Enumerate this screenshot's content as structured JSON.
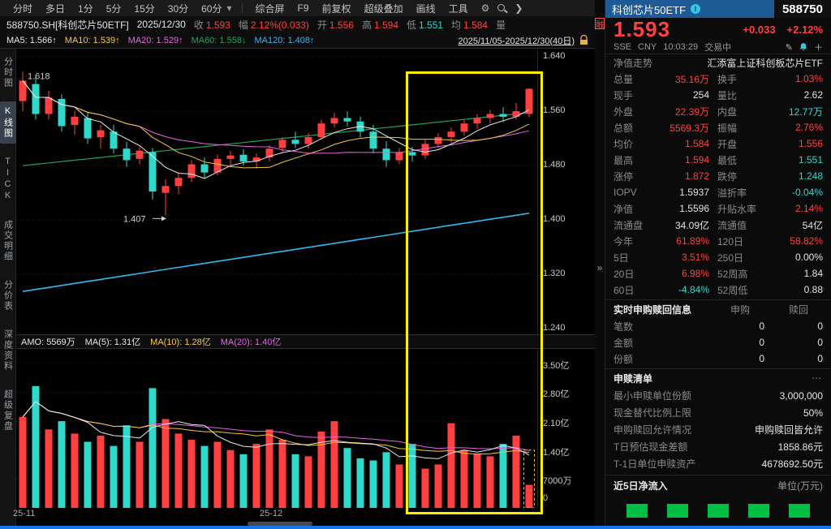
{
  "glyphs": {
    "caret": "▾",
    "chevron": "❯",
    "gear": "⚙",
    "more": "⋯",
    "collapse": "»",
    "info": "i",
    "edit": "✎",
    "plus": "＋"
  },
  "toolbar": {
    "period_tabs": [
      "分时",
      "多日",
      "1分",
      "5分",
      "15分",
      "30分",
      "60分"
    ],
    "tools": [
      "综合屏",
      "F9",
      "前复权",
      "超级叠加",
      "画线",
      "工具"
    ]
  },
  "info_bar": {
    "symbol": "588750.SH[科创芯片50ETF]",
    "date": "2025/12/30",
    "fields": [
      {
        "label": "收",
        "value": "1.593",
        "color": "up"
      },
      {
        "label": "幅",
        "value": "2.12%(0.033)",
        "color": "up"
      },
      {
        "label": "开",
        "value": "1.556",
        "color": "up"
      },
      {
        "label": "高",
        "value": "1.594",
        "color": "up"
      },
      {
        "label": "低",
        "value": "1.551",
        "color": "down"
      },
      {
        "label": "均",
        "value": "1.584",
        "color": "up"
      },
      {
        "label": "量",
        "value": "",
        "color": "neutral"
      }
    ]
  },
  "ma_bar": {
    "items": [
      {
        "label": "MA5:",
        "value": "1.566",
        "arrow": "↑",
        "color": "ma5"
      },
      {
        "label": "MA10:",
        "value": "1.539",
        "arrow": "↑",
        "color": "ma10"
      },
      {
        "label": "MA20:",
        "value": "1.529",
        "arrow": "↑",
        "color": "ma20"
      },
      {
        "label": "MA60:",
        "value": "1.558",
        "arrow": "↓",
        "color": "ma60"
      },
      {
        "label": "MA120:",
        "value": "1.408",
        "arrow": "↑",
        "color": "ma120"
      }
    ],
    "range": "2025/11/05-2025/12/30(40日)"
  },
  "sidebar": {
    "tabs": [
      {
        "label": "分时图",
        "state": "normal"
      },
      {
        "label": "K线图",
        "state": "active"
      },
      {
        "label": "TICK",
        "state": "normal"
      },
      {
        "label": "成交明细",
        "state": "normal"
      },
      {
        "label": "分价表",
        "state": "normal"
      },
      {
        "label": "深度资料",
        "state": "normal"
      },
      {
        "label": "超级复盘",
        "state": "normal"
      }
    ]
  },
  "volume_header": {
    "items": [
      {
        "label": "AMO:",
        "value": "5569万",
        "color": "ma5"
      },
      {
        "label": "MA(5):",
        "value": "1.31亿",
        "color": "ma5"
      },
      {
        "label": "MA(10):",
        "value": "1.28亿",
        "color": "ma10"
      },
      {
        "label": "MA(20):",
        "value": "1.40亿",
        "color": "ma20"
      }
    ]
  },
  "side_strip": {
    "margin_badge": "融",
    "collapse_glyph": "»"
  },
  "chart_data": {
    "type": "candlestick",
    "symbol": "588750.SH",
    "name": "科创芯片50ETF",
    "period": "日K",
    "visible_range": "2025/11/05-2025/12/30",
    "days": 40,
    "price_ticks": [
      "1.640",
      "1.560",
      "1.480",
      "1.400",
      "1.320",
      "1.240"
    ],
    "price_tick_values": [
      1.64,
      1.56,
      1.48,
      1.4,
      1.32,
      1.24
    ],
    "price_min": 1.232,
    "price_max": 1.652,
    "amount_ticks": [
      "3.50亿",
      "2.80亿",
      "2.10亿",
      "1.40亿",
      "7000万",
      "0"
    ],
    "amount_tick_values": [
      35000,
      28000,
      21000,
      14000,
      7000,
      0
    ],
    "amount_max": 38500,
    "x_labels": [
      {
        "label": "25-11",
        "index": 0
      },
      {
        "label": "25-12",
        "index": 19
      }
    ],
    "candles_ohlc": [
      [
        1.575,
        1.618,
        1.56,
        1.605
      ],
      [
        1.6,
        1.612,
        1.548,
        1.556
      ],
      [
        1.556,
        1.59,
        1.548,
        1.58
      ],
      [
        1.578,
        1.585,
        1.53,
        1.538
      ],
      [
        1.54,
        1.56,
        1.525,
        1.552
      ],
      [
        1.55,
        1.558,
        1.512,
        1.52
      ],
      [
        1.522,
        1.54,
        1.505,
        1.532
      ],
      [
        1.53,
        1.54,
        1.498,
        1.505
      ],
      [
        1.505,
        1.515,
        1.478,
        1.488
      ],
      [
        1.49,
        1.508,
        1.482,
        1.502
      ],
      [
        1.5,
        1.506,
        1.43,
        1.442
      ],
      [
        1.44,
        1.46,
        1.407,
        1.45
      ],
      [
        1.45,
        1.47,
        1.438,
        1.462
      ],
      [
        1.462,
        1.488,
        1.456,
        1.482
      ],
      [
        1.482,
        1.492,
        1.462,
        1.47
      ],
      [
        1.47,
        1.496,
        1.466,
        1.49
      ],
      [
        1.49,
        1.502,
        1.478,
        1.495
      ],
      [
        1.496,
        1.504,
        1.48,
        1.486
      ],
      [
        1.486,
        1.498,
        1.476,
        1.492
      ],
      [
        1.492,
        1.51,
        1.486,
        1.505
      ],
      [
        1.506,
        1.522,
        1.5,
        1.518
      ],
      [
        1.518,
        1.53,
        1.506,
        1.512
      ],
      [
        1.512,
        1.528,
        1.505,
        1.522
      ],
      [
        1.522,
        1.548,
        1.518,
        1.542
      ],
      [
        1.542,
        1.558,
        1.536,
        1.55
      ],
      [
        1.55,
        1.56,
        1.538,
        1.545
      ],
      [
        1.545,
        1.552,
        1.522,
        1.53
      ],
      [
        1.53,
        1.54,
        1.498,
        1.505
      ],
      [
        1.505,
        1.516,
        1.478,
        1.488
      ],
      [
        1.488,
        1.506,
        1.482,
        1.5
      ],
      [
        1.5,
        1.508,
        1.486,
        1.495
      ],
      [
        1.495,
        1.518,
        1.49,
        1.512
      ],
      [
        1.512,
        1.528,
        1.506,
        1.522
      ],
      [
        1.522,
        1.536,
        1.514,
        1.53
      ],
      [
        1.53,
        1.548,
        1.524,
        1.542
      ],
      [
        1.542,
        1.556,
        1.534,
        1.55
      ],
      [
        1.55,
        1.562,
        1.542,
        1.556
      ],
      [
        1.556,
        1.566,
        1.544,
        1.552
      ],
      [
        1.552,
        1.572,
        1.548,
        1.56
      ],
      [
        1.556,
        1.594,
        1.551,
        1.593
      ]
    ],
    "amounts_wan": [
      22000,
      29500,
      19000,
      21000,
      18000,
      16000,
      17500,
      15000,
      20000,
      16000,
      29000,
      21500,
      18000,
      16500,
      15000,
      16000,
      14000,
      13000,
      15500,
      19000,
      16500,
      13000,
      12500,
      18500,
      21000,
      14500,
      12000,
      11500,
      13500,
      10500,
      15500,
      9500,
      10500,
      20500,
      14000,
      13000,
      12500,
      15500,
      17500,
      5569
    ],
    "ma_overlays": {
      "ma60": {
        "start": 1.48,
        "end": 1.558
      },
      "ma120": {
        "start": 1.295,
        "end": 1.41
      }
    },
    "annotations": [
      {
        "text": "1.618",
        "index": 0,
        "price": 1.618,
        "placement": "right"
      },
      {
        "text": "1.407",
        "index": 11,
        "price": 1.407,
        "placement": "below"
      }
    ],
    "highlight": {
      "start_index": 30,
      "end_index": 39
    },
    "forming_bar_dash": true,
    "forming_bar_dash_top": 14000,
    "colors": {
      "up": "#ff4040",
      "down": "#2fd8cb",
      "ma5": "#e8e8e8",
      "ma10": "#f5c842",
      "ma20": "#e665e6",
      "ma60": "#22a35e",
      "ma120": "#36b6f0",
      "highlight": "#ffee00",
      "grid": "#262626"
    }
  },
  "quote_panel": {
    "name": "科创芯片50ETF",
    "code": "588750",
    "price": "1.593",
    "change": "+0.033",
    "change_pct": "+2.12%",
    "market": "SSE",
    "currency": "CNY",
    "time": "10:03:29",
    "session_status": "交易中",
    "nav_tab": "净值走势",
    "full_name": "汇添富上证科创板芯片ETF",
    "stats": [
      {
        "l": "总量",
        "lv": "35.16万",
        "lc": "up",
        "r": "换手",
        "rv": "1.03%",
        "rc": "up"
      },
      {
        "l": "现手",
        "lv": "254",
        "lc": "neutral",
        "r": "量比",
        "rv": "2.62",
        "rc": "neutral"
      },
      {
        "l": "外盘",
        "lv": "22.39万",
        "lc": "up",
        "r": "内盘",
        "rv": "12.77万",
        "rc": "down"
      },
      {
        "l": "总额",
        "lv": "5569.3万",
        "lc": "up",
        "r": "振幅",
        "rv": "2.76%",
        "rc": "up"
      },
      {
        "l": "均价",
        "lv": "1.584",
        "lc": "up",
        "r": "开盘",
        "rv": "1.556",
        "rc": "up"
      },
      {
        "l": "最高",
        "lv": "1.594",
        "lc": "up",
        "r": "最低",
        "rv": "1.551",
        "rc": "down"
      },
      {
        "l": "涨停",
        "lv": "1.872",
        "lc": "up",
        "r": "跌停",
        "rv": "1.248",
        "rc": "down"
      },
      {
        "l": "IOPV",
        "lv": "1.5937",
        "lc": "neutral",
        "r": "溢折率",
        "rv": "-0.04%",
        "rc": "down"
      },
      {
        "l": "净值",
        "lv": "1.5596",
        "lc": "neutral",
        "r": "升贴水率",
        "rv": "2.14%",
        "rc": "up"
      },
      {
        "l": "流通盘",
        "lv": "34.09亿",
        "lc": "neutral",
        "r": "流通值",
        "rv": "54亿",
        "rc": "neutral"
      },
      {
        "l": "今年",
        "lv": "61.89%",
        "lc": "up",
        "r": "120日",
        "rv": "58.82%",
        "rc": "up"
      },
      {
        "l": "5日",
        "lv": "3.51%",
        "lc": "up",
        "r": "250日",
        "rv": "0.00%",
        "rc": "neutral"
      },
      {
        "l": "20日",
        "lv": "6.98%",
        "lc": "up",
        "r": "52周高",
        "rv": "1.84",
        "rc": "neutral"
      },
      {
        "l": "60日",
        "lv": "-4.84%",
        "lc": "down",
        "r": "52周低",
        "rv": "0.88",
        "rc": "neutral"
      }
    ],
    "subscription": {
      "title": "实时申购赎回信息",
      "col1": "申购",
      "col2": "赎回",
      "rows": [
        {
          "label": "笔数",
          "v1": "0",
          "v2": "0"
        },
        {
          "label": "金额",
          "v1": "0",
          "v2": "0"
        },
        {
          "label": "份额",
          "v1": "0",
          "v2": "0"
        }
      ]
    },
    "redemption_list": {
      "title": "申赎清单",
      "rows": [
        {
          "label": "最小申赎单位份额",
          "value": "3,000,000"
        },
        {
          "label": "现金替代比例上限",
          "value": "50%"
        },
        {
          "label": "申购赎回允许情况",
          "value": "申购赎回皆允许"
        },
        {
          "label": "T日预估现金差额",
          "value": "1858.86元"
        },
        {
          "label": "T-1日单位申赎资产",
          "value": "4678692.50元"
        }
      ]
    },
    "net_inflow": {
      "title": "近5日净流入",
      "unit": "单位(万元)",
      "bars": [
        "up-green",
        "up-green",
        "up-green",
        "up-green",
        "up-green"
      ]
    }
  }
}
